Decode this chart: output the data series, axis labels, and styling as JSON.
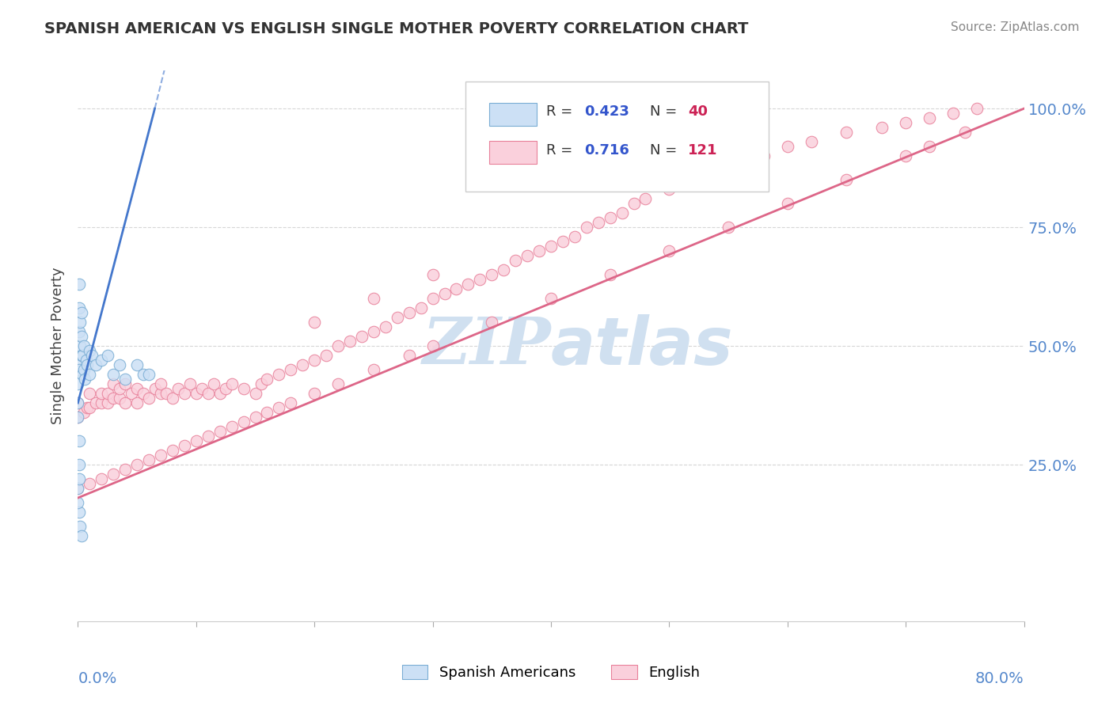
{
  "title": "SPANISH AMERICAN VS ENGLISH SINGLE MOTHER POVERTY CORRELATION CHART",
  "source": "Source: ZipAtlas.com",
  "ylabel": "Single Mother Poverty",
  "right_ytick_labels": [
    "25.0%",
    "50.0%",
    "75.0%",
    "100.0%"
  ],
  "right_ytick_values": [
    0.25,
    0.5,
    0.75,
    1.0
  ],
  "legend_entries": [
    {
      "label": "Spanish Americans",
      "color": "#b8d0ea",
      "R": 0.423,
      "N": 40
    },
    {
      "label": "English",
      "color": "#f5b8c8",
      "R": 0.716,
      "N": 121
    }
  ],
  "blue_edge_color": "#7aadd4",
  "pink_edge_color": "#e8809a",
  "blue_fill": "#cce0f5",
  "pink_fill": "#fad0dc",
  "blue_line_color": "#4477cc",
  "pink_line_color": "#dd6688",
  "R_color": "#3355cc",
  "N_color": "#cc2255",
  "watermark_color": "#d0e0f0",
  "background_color": "#ffffff",
  "xlim": [
    0.0,
    0.8
  ],
  "ylim": [
    -0.08,
    1.08
  ],
  "spanish_x": [
    0.0,
    0.0,
    0.001,
    0.001,
    0.001,
    0.001,
    0.002,
    0.002,
    0.003,
    0.003,
    0.003,
    0.004,
    0.004,
    0.005,
    0.005,
    0.006,
    0.007,
    0.008,
    0.01,
    0.01,
    0.012,
    0.015,
    0.02,
    0.025,
    0.03,
    0.035,
    0.04,
    0.05,
    0.055,
    0.06,
    0.001,
    0.002,
    0.003,
    0.0,
    0.0,
    0.001,
    0.001,
    0.001,
    0.0,
    0.0
  ],
  "spanish_y": [
    0.42,
    0.47,
    0.53,
    0.58,
    0.63,
    0.45,
    0.5,
    0.55,
    0.48,
    0.52,
    0.57,
    0.44,
    0.48,
    0.45,
    0.5,
    0.43,
    0.47,
    0.46,
    0.44,
    0.49,
    0.48,
    0.46,
    0.47,
    0.48,
    0.44,
    0.46,
    0.43,
    0.46,
    0.44,
    0.44,
    0.15,
    0.12,
    0.1,
    0.2,
    0.17,
    0.22,
    0.25,
    0.3,
    0.35,
    0.38
  ],
  "english_x": [
    0.0,
    0.0,
    0.005,
    0.008,
    0.01,
    0.01,
    0.015,
    0.02,
    0.02,
    0.025,
    0.025,
    0.03,
    0.03,
    0.035,
    0.035,
    0.04,
    0.04,
    0.045,
    0.05,
    0.05,
    0.055,
    0.06,
    0.065,
    0.07,
    0.07,
    0.075,
    0.08,
    0.085,
    0.09,
    0.095,
    0.1,
    0.105,
    0.11,
    0.115,
    0.12,
    0.125,
    0.13,
    0.14,
    0.15,
    0.155,
    0.16,
    0.17,
    0.18,
    0.19,
    0.2,
    0.21,
    0.22,
    0.23,
    0.24,
    0.25,
    0.26,
    0.27,
    0.28,
    0.29,
    0.3,
    0.31,
    0.32,
    0.33,
    0.34,
    0.35,
    0.36,
    0.37,
    0.38,
    0.39,
    0.4,
    0.41,
    0.42,
    0.43,
    0.44,
    0.45,
    0.46,
    0.47,
    0.48,
    0.5,
    0.52,
    0.55,
    0.58,
    0.6,
    0.62,
    0.65,
    0.68,
    0.7,
    0.72,
    0.74,
    0.76,
    0.0,
    0.01,
    0.02,
    0.03,
    0.04,
    0.05,
    0.06,
    0.07,
    0.08,
    0.09,
    0.1,
    0.11,
    0.12,
    0.13,
    0.14,
    0.15,
    0.16,
    0.17,
    0.18,
    0.2,
    0.22,
    0.25,
    0.28,
    0.3,
    0.35,
    0.4,
    0.45,
    0.5,
    0.55,
    0.6,
    0.65,
    0.7,
    0.72,
    0.75,
    0.2,
    0.25,
    0.3
  ],
  "english_y": [
    0.38,
    0.35,
    0.36,
    0.37,
    0.37,
    0.4,
    0.38,
    0.38,
    0.4,
    0.38,
    0.4,
    0.39,
    0.42,
    0.39,
    0.41,
    0.38,
    0.42,
    0.4,
    0.38,
    0.41,
    0.4,
    0.39,
    0.41,
    0.4,
    0.42,
    0.4,
    0.39,
    0.41,
    0.4,
    0.42,
    0.4,
    0.41,
    0.4,
    0.42,
    0.4,
    0.41,
    0.42,
    0.41,
    0.4,
    0.42,
    0.43,
    0.44,
    0.45,
    0.46,
    0.47,
    0.48,
    0.5,
    0.51,
    0.52,
    0.53,
    0.54,
    0.56,
    0.57,
    0.58,
    0.6,
    0.61,
    0.62,
    0.63,
    0.64,
    0.65,
    0.66,
    0.68,
    0.69,
    0.7,
    0.71,
    0.72,
    0.73,
    0.75,
    0.76,
    0.77,
    0.78,
    0.8,
    0.81,
    0.83,
    0.85,
    0.87,
    0.9,
    0.92,
    0.93,
    0.95,
    0.96,
    0.97,
    0.98,
    0.99,
    1.0,
    0.2,
    0.21,
    0.22,
    0.23,
    0.24,
    0.25,
    0.26,
    0.27,
    0.28,
    0.29,
    0.3,
    0.31,
    0.32,
    0.33,
    0.34,
    0.35,
    0.36,
    0.37,
    0.38,
    0.4,
    0.42,
    0.45,
    0.48,
    0.5,
    0.55,
    0.6,
    0.65,
    0.7,
    0.75,
    0.8,
    0.85,
    0.9,
    0.92,
    0.95,
    0.55,
    0.6,
    0.65
  ],
  "blue_line_x": [
    0.0,
    0.065
  ],
  "blue_line_y": [
    0.38,
    1.0
  ],
  "pink_line_x": [
    0.0,
    0.8
  ],
  "pink_line_y": [
    0.18,
    1.0
  ]
}
